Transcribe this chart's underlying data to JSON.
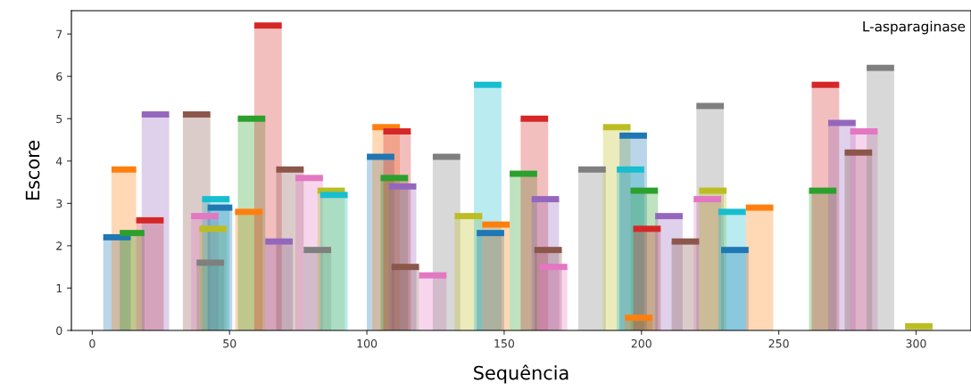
{
  "chart_data": {
    "type": "area",
    "xlabel": "Sequência",
    "ylabel": "Escore",
    "annotations": [
      "L-asparaginase"
    ],
    "xlim": [
      -7.6,
      320
    ],
    "ylim": [
      0,
      7.55
    ],
    "xticks": [
      0,
      50,
      100,
      150,
      200,
      250,
      300
    ],
    "yticks": [
      0,
      1,
      2,
      3,
      4,
      5,
      6,
      7
    ],
    "grid": false,
    "legend": false,
    "marker": "none",
    "line_style": "solid",
    "series": [
      {
        "color": "#1f77b4",
        "x": [
          4,
          14
        ],
        "values": [
          2.2,
          2.2
        ]
      },
      {
        "color": "#ff7f0e",
        "x": [
          7,
          16
        ],
        "values": [
          3.8,
          3.8
        ]
      },
      {
        "color": "#2ca02c",
        "x": [
          10,
          19
        ],
        "values": [
          2.3,
          2.3
        ]
      },
      {
        "color": "#d62728",
        "x": [
          16,
          26
        ],
        "values": [
          2.6,
          2.6
        ]
      },
      {
        "color": "#9467bd",
        "x": [
          18,
          28
        ],
        "values": [
          5.1,
          5.1
        ]
      },
      {
        "color": "#8c564b",
        "x": [
          33,
          43
        ],
        "values": [
          5.1,
          5.1
        ]
      },
      {
        "color": "#e377c2",
        "x": [
          36,
          46
        ],
        "values": [
          2.7,
          2.7
        ]
      },
      {
        "color": "#7f7f7f",
        "x": [
          38,
          48
        ],
        "values": [
          1.6,
          1.6
        ]
      },
      {
        "color": "#bcbd22",
        "x": [
          39,
          49
        ],
        "values": [
          2.4,
          2.4
        ]
      },
      {
        "color": "#17becf",
        "x": [
          40,
          50
        ],
        "values": [
          3.1,
          3.1
        ]
      },
      {
        "color": "#1f77b4",
        "x": [
          42,
          51
        ],
        "values": [
          2.9,
          2.9
        ]
      },
      {
        "color": "#ff7f0e",
        "x": [
          52,
          62
        ],
        "values": [
          2.8,
          2.8
        ]
      },
      {
        "color": "#2ca02c",
        "x": [
          53,
          63
        ],
        "values": [
          5.0,
          5.0
        ]
      },
      {
        "color": "#d62728",
        "x": [
          59,
          69
        ],
        "values": [
          7.2,
          7.2
        ]
      },
      {
        "color": "#9467bd",
        "x": [
          63,
          73
        ],
        "values": [
          2.1,
          2.1
        ]
      },
      {
        "color": "#8c564b",
        "x": [
          67,
          77
        ],
        "values": [
          3.8,
          3.8
        ]
      },
      {
        "color": "#e377c2",
        "x": [
          74,
          84
        ],
        "values": [
          3.6,
          3.6
        ]
      },
      {
        "color": "#7f7f7f",
        "x": [
          77,
          87
        ],
        "values": [
          1.9,
          1.9
        ]
      },
      {
        "color": "#bcbd22",
        "x": [
          82,
          92
        ],
        "values": [
          3.3,
          3.3
        ]
      },
      {
        "color": "#17becf",
        "x": [
          83,
          93
        ],
        "values": [
          3.2,
          3.2
        ]
      },
      {
        "color": "#1f77b4",
        "x": [
          100,
          110
        ],
        "values": [
          4.1,
          4.1
        ]
      },
      {
        "color": "#ff7f0e",
        "x": [
          102,
          112
        ],
        "values": [
          4.8,
          4.8
        ]
      },
      {
        "color": "#2ca02c",
        "x": [
          105,
          115
        ],
        "values": [
          3.6,
          3.6
        ]
      },
      {
        "color": "#d62728",
        "x": [
          106,
          116
        ],
        "values": [
          4.7,
          4.7
        ]
      },
      {
        "color": "#9467bd",
        "x": [
          108,
          118
        ],
        "values": [
          3.4,
          3.4
        ]
      },
      {
        "color": "#8c564b",
        "x": [
          109,
          119
        ],
        "values": [
          1.5,
          1.5
        ]
      },
      {
        "color": "#e377c2",
        "x": [
          119,
          129
        ],
        "values": [
          1.3,
          1.3
        ]
      },
      {
        "color": "#7f7f7f",
        "x": [
          124,
          134
        ],
        "values": [
          4.1,
          4.1
        ]
      },
      {
        "color": "#bcbd22",
        "x": [
          132,
          142
        ],
        "values": [
          2.7,
          2.7
        ]
      },
      {
        "color": "#17becf",
        "x": [
          139,
          149
        ],
        "values": [
          5.8,
          5.8
        ]
      },
      {
        "color": "#1f77b4",
        "x": [
          140,
          150
        ],
        "values": [
          2.3,
          2.3
        ]
      },
      {
        "color": "#ff7f0e",
        "x": [
          142,
          152
        ],
        "values": [
          2.5,
          2.5
        ]
      },
      {
        "color": "#2ca02c",
        "x": [
          152,
          162
        ],
        "values": [
          3.7,
          3.7
        ]
      },
      {
        "color": "#d62728",
        "x": [
          156,
          166
        ],
        "values": [
          5.0,
          5.0
        ]
      },
      {
        "color": "#9467bd",
        "x": [
          160,
          170
        ],
        "values": [
          3.1,
          3.1
        ]
      },
      {
        "color": "#8c564b",
        "x": [
          161,
          171
        ],
        "values": [
          1.9,
          1.9
        ]
      },
      {
        "color": "#e377c2",
        "x": [
          163,
          173
        ],
        "values": [
          1.5,
          1.5
        ]
      },
      {
        "color": "#7f7f7f",
        "x": [
          177,
          187
        ],
        "values": [
          3.8,
          3.8
        ]
      },
      {
        "color": "#bcbd22",
        "x": [
          186,
          196
        ],
        "values": [
          4.8,
          4.8
        ]
      },
      {
        "color": "#17becf",
        "x": [
          191,
          201
        ],
        "values": [
          3.8,
          3.8
        ]
      },
      {
        "color": "#1f77b4",
        "x": [
          192,
          202
        ],
        "values": [
          4.6,
          4.6
        ]
      },
      {
        "color": "#ff7f0e",
        "x": [
          194,
          204
        ],
        "values": [
          0.3,
          0.3
        ]
      },
      {
        "color": "#2ca02c",
        "x": [
          196,
          206
        ],
        "values": [
          3.3,
          3.3
        ]
      },
      {
        "color": "#d62728",
        "x": [
          197,
          207
        ],
        "values": [
          2.4,
          2.4
        ]
      },
      {
        "color": "#9467bd",
        "x": [
          205,
          215
        ],
        "values": [
          2.7,
          2.7
        ]
      },
      {
        "color": "#8c564b",
        "x": [
          211,
          221
        ],
        "values": [
          2.1,
          2.1
        ]
      },
      {
        "color": "#e377c2",
        "x": [
          219,
          229
        ],
        "values": [
          3.1,
          3.1
        ]
      },
      {
        "color": "#7f7f7f",
        "x": [
          220,
          230
        ],
        "values": [
          5.3,
          5.3
        ]
      },
      {
        "color": "#bcbd22",
        "x": [
          221,
          231
        ],
        "values": [
          3.3,
          3.3
        ]
      },
      {
        "color": "#17becf",
        "x": [
          228,
          238
        ],
        "values": [
          2.8,
          2.8
        ]
      },
      {
        "color": "#1f77b4",
        "x": [
          229,
          239
        ],
        "values": [
          1.9,
          1.9
        ]
      },
      {
        "color": "#ff7f0e",
        "x": [
          238,
          248
        ],
        "values": [
          2.9,
          2.9
        ]
      },
      {
        "color": "#2ca02c",
        "x": [
          261,
          271
        ],
        "values": [
          3.3,
          3.3
        ]
      },
      {
        "color": "#d62728",
        "x": [
          262,
          272
        ],
        "values": [
          5.8,
          5.8
        ]
      },
      {
        "color": "#9467bd",
        "x": [
          268,
          278
        ],
        "values": [
          4.9,
          4.9
        ]
      },
      {
        "color": "#8c564b",
        "x": [
          274,
          284
        ],
        "values": [
          4.2,
          4.2
        ]
      },
      {
        "color": "#e377c2",
        "x": [
          276,
          286
        ],
        "values": [
          4.7,
          4.7
        ]
      },
      {
        "color": "#7f7f7f",
        "x": [
          282,
          292
        ],
        "values": [
          6.2,
          6.2
        ]
      },
      {
        "color": "#bcbd22",
        "x": [
          296,
          306
        ],
        "values": [
          0.1,
          0.1
        ]
      }
    ]
  }
}
